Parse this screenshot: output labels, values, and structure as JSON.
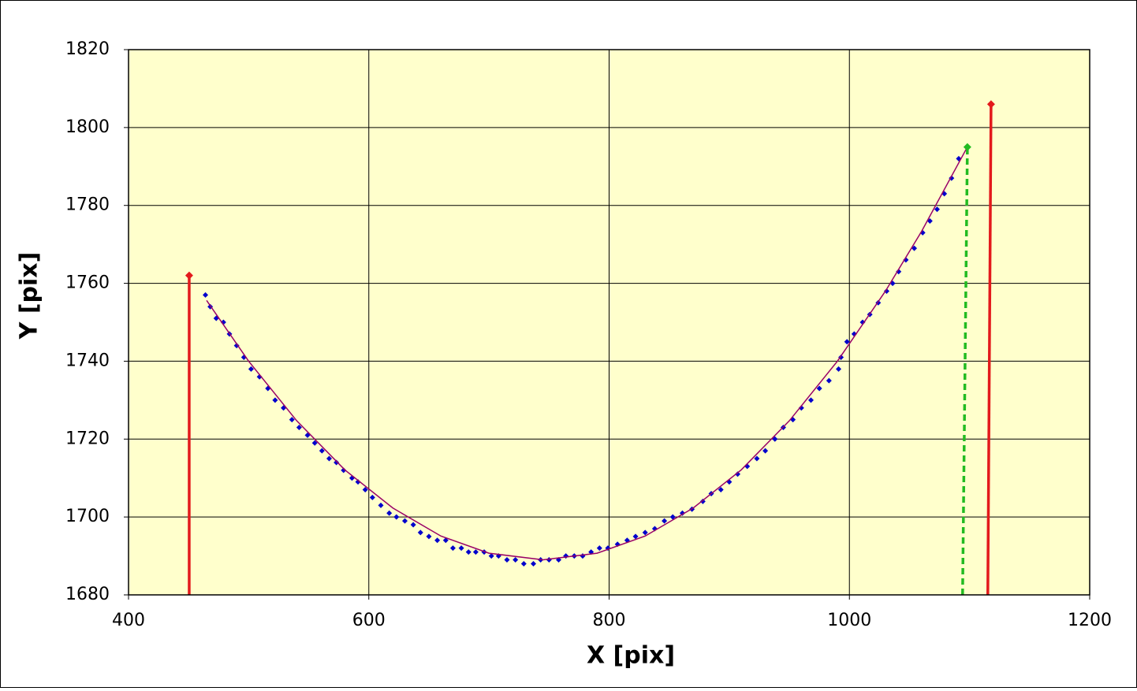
{
  "chart_data": {
    "type": "scatter",
    "x_label": "X  [pix]",
    "y_label": "Y  [pix]",
    "xlim": [
      400,
      1200
    ],
    "ylim": [
      1680,
      1820
    ],
    "xticks": [
      400,
      600,
      800,
      1000,
      1200
    ],
    "yticks": [
      1680,
      1700,
      1720,
      1740,
      1760,
      1780,
      1800,
      1820
    ],
    "grid": true,
    "plot_background": "#ffffcc",
    "series": [
      {
        "color": "#0000cc",
        "mode": "markers",
        "x": [
          464,
          468,
          473,
          479,
          484,
          490,
          496,
          502,
          509,
          516,
          522,
          529,
          536,
          542,
          549,
          555,
          561,
          567,
          573,
          579,
          586,
          591,
          597,
          603,
          610,
          617,
          623,
          630,
          637,
          643,
          650,
          657,
          664,
          670,
          677,
          683,
          689,
          696,
          702,
          708,
          715,
          722,
          729,
          737,
          743,
          750,
          758,
          764,
          771,
          778,
          785,
          792,
          799,
          807,
          815,
          822,
          830,
          838,
          846,
          853,
          861,
          869,
          878,
          885,
          893,
          900,
          907,
          915,
          923,
          930,
          938,
          945,
          953,
          960,
          968,
          975,
          983,
          991,
          993,
          998,
          1004,
          1011,
          1017,
          1024,
          1031,
          1036,
          1041,
          1047,
          1054,
          1061,
          1067,
          1073,
          1079,
          1085,
          1091
        ],
        "values": [
          1757,
          1754,
          1751,
          1750,
          1747,
          1744,
          1741,
          1738,
          1736,
          1733,
          1730,
          1728,
          1725,
          1723,
          1721,
          1719,
          1717,
          1715,
          1714,
          1712,
          1710,
          1709,
          1707,
          1705,
          1703,
          1701,
          1700,
          1699,
          1698,
          1696,
          1695,
          1694,
          1694,
          1692,
          1692,
          1691,
          1691,
          1691,
          1690,
          1690,
          1689,
          1689,
          1688,
          1688,
          1689,
          1689,
          1689,
          1690,
          1690,
          1690,
          1691,
          1692,
          1692,
          1693,
          1694,
          1695,
          1696,
          1697,
          1699,
          1700,
          1701,
          1702,
          1704,
          1706,
          1707,
          1709,
          1711,
          1713,
          1715,
          1717,
          1720,
          1723,
          1725,
          1728,
          1730,
          1733,
          1735,
          1738,
          1741,
          1745,
          1747,
          1750,
          1752,
          1755,
          1758,
          1760,
          1763,
          1766,
          1769,
          1773,
          1776,
          1779,
          1783,
          1787,
          1792
        ]
      },
      {
        "color": "#990066",
        "mode": "line",
        "x": [
          465,
          500,
          540,
          580,
          620,
          660,
          700,
          745,
          790,
          830,
          870,
          910,
          950,
          990,
          1030,
          1060,
          1098
        ],
        "values": [
          1755.6,
          1740.0,
          1724.7,
          1712.1,
          1702.3,
          1695.1,
          1690.7,
          1689,
          1690.7,
          1695.1,
          1702.3,
          1712.1,
          1724.7,
          1740.0,
          1758.0,
          1773.3,
          1794.9
        ]
      },
      {
        "color": "#e31a1c",
        "mode": "line-end-marker",
        "x": [
          450.5,
          450.5
        ],
        "values": [
          1680,
          1762
        ]
      },
      {
        "color": "#e31a1c",
        "mode": "line-end-marker",
        "x": [
          1115.2,
          1117.9
        ],
        "values": [
          1680,
          1806
        ]
      },
      {
        "color": "#22bb22",
        "mode": "dashed-end-marker",
        "x": [
          1094.2,
          1098.2
        ],
        "values": [
          1680,
          1795
        ]
      }
    ]
  }
}
